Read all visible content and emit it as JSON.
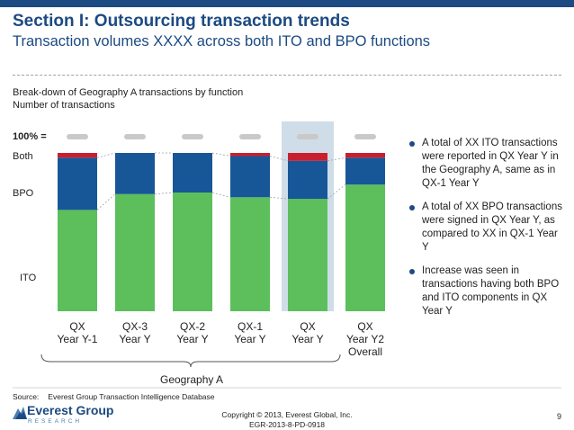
{
  "header": {
    "title": "Section I: Outsourcing transaction trends",
    "subtitle": "Transaction volumes XXXX across both ITO and BPO functions"
  },
  "chart": {
    "description_line1": "Break-down of Geography A transactions by function",
    "description_line2": "Number of transactions",
    "total_label": "100% =",
    "segment_labels": {
      "both": "Both",
      "bpo": "BPO",
      "ito": "ITO"
    },
    "group_label": "Geography A"
  },
  "chart_data": {
    "type": "bar",
    "stacked": true,
    "percent": true,
    "categories": [
      [
        "QX",
        "Year Y-1"
      ],
      [
        "QX-3",
        "Year Y"
      ],
      [
        "QX-2",
        "Year Y"
      ],
      [
        "QX-1",
        "Year Y"
      ],
      [
        "QX",
        "Year Y"
      ],
      [
        "QX",
        "Year Y2",
        "Overall"
      ]
    ],
    "series": [
      {
        "name": "ITO",
        "values": [
          64,
          74,
          75,
          72,
          71,
          80
        ]
      },
      {
        "name": "BPO",
        "values": [
          33,
          26,
          25,
          26,
          24,
          17
        ]
      },
      {
        "name": "Both",
        "values": [
          3,
          0,
          0,
          2,
          5,
          3
        ]
      }
    ],
    "highlight_index": 4,
    "ylim": [
      0,
      100
    ],
    "colors": {
      "ITO": "#5cbf5c",
      "BPO": "#175797",
      "Both": "#c8202f",
      "highlight": "#cfdde8"
    }
  },
  "bullets": [
    "A total of XX ITO transactions were reported in QX Year Y in the Geography A, same as in QX-1 Year Y",
    "A total of XX BPO transactions were signed in QX Year Y, as compared to XX in QX-1 Year Y",
    "Increase was seen in transactions having both BPO and ITO components in QX Year Y"
  ],
  "footer": {
    "source_label": "Source:",
    "source_text": "Everest Group Transaction Intelligence Database",
    "logo_name": "Everest Group",
    "logo_sub": "RESEARCH",
    "copyright": "Copyright © 2013, Everest Global, Inc.",
    "doc_id": "EGR-2013-8-PD-0918",
    "page_number": "9"
  }
}
